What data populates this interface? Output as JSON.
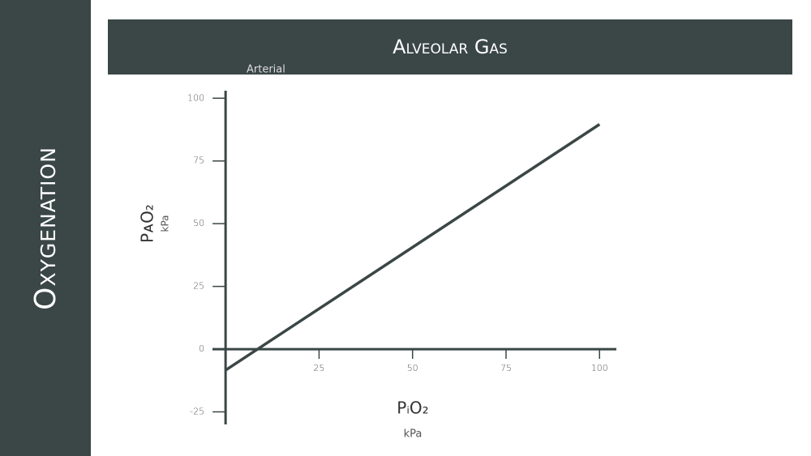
{
  "sidebar_title": "Oxygenation",
  "chart_data": {
    "type": "line",
    "title": "Alveolar Gas",
    "annotation": "Arterial",
    "y_label": "PᴀO₂",
    "y_unit": "kPa",
    "x_label": "PᵢO₂",
    "x_unit": "kPa",
    "x": [
      0,
      100
    ],
    "series": [
      {
        "name": null,
        "color": "#3b4646",
        "values": [
          -8.4,
          89.6
        ]
      }
    ],
    "xlim": [
      -3.5,
      104.5
    ],
    "ylim": [
      -30,
      103
    ],
    "xticks": [
      25,
      50,
      75,
      100
    ],
    "yticks": [
      100,
      75,
      50,
      25,
      0,
      -25
    ]
  }
}
